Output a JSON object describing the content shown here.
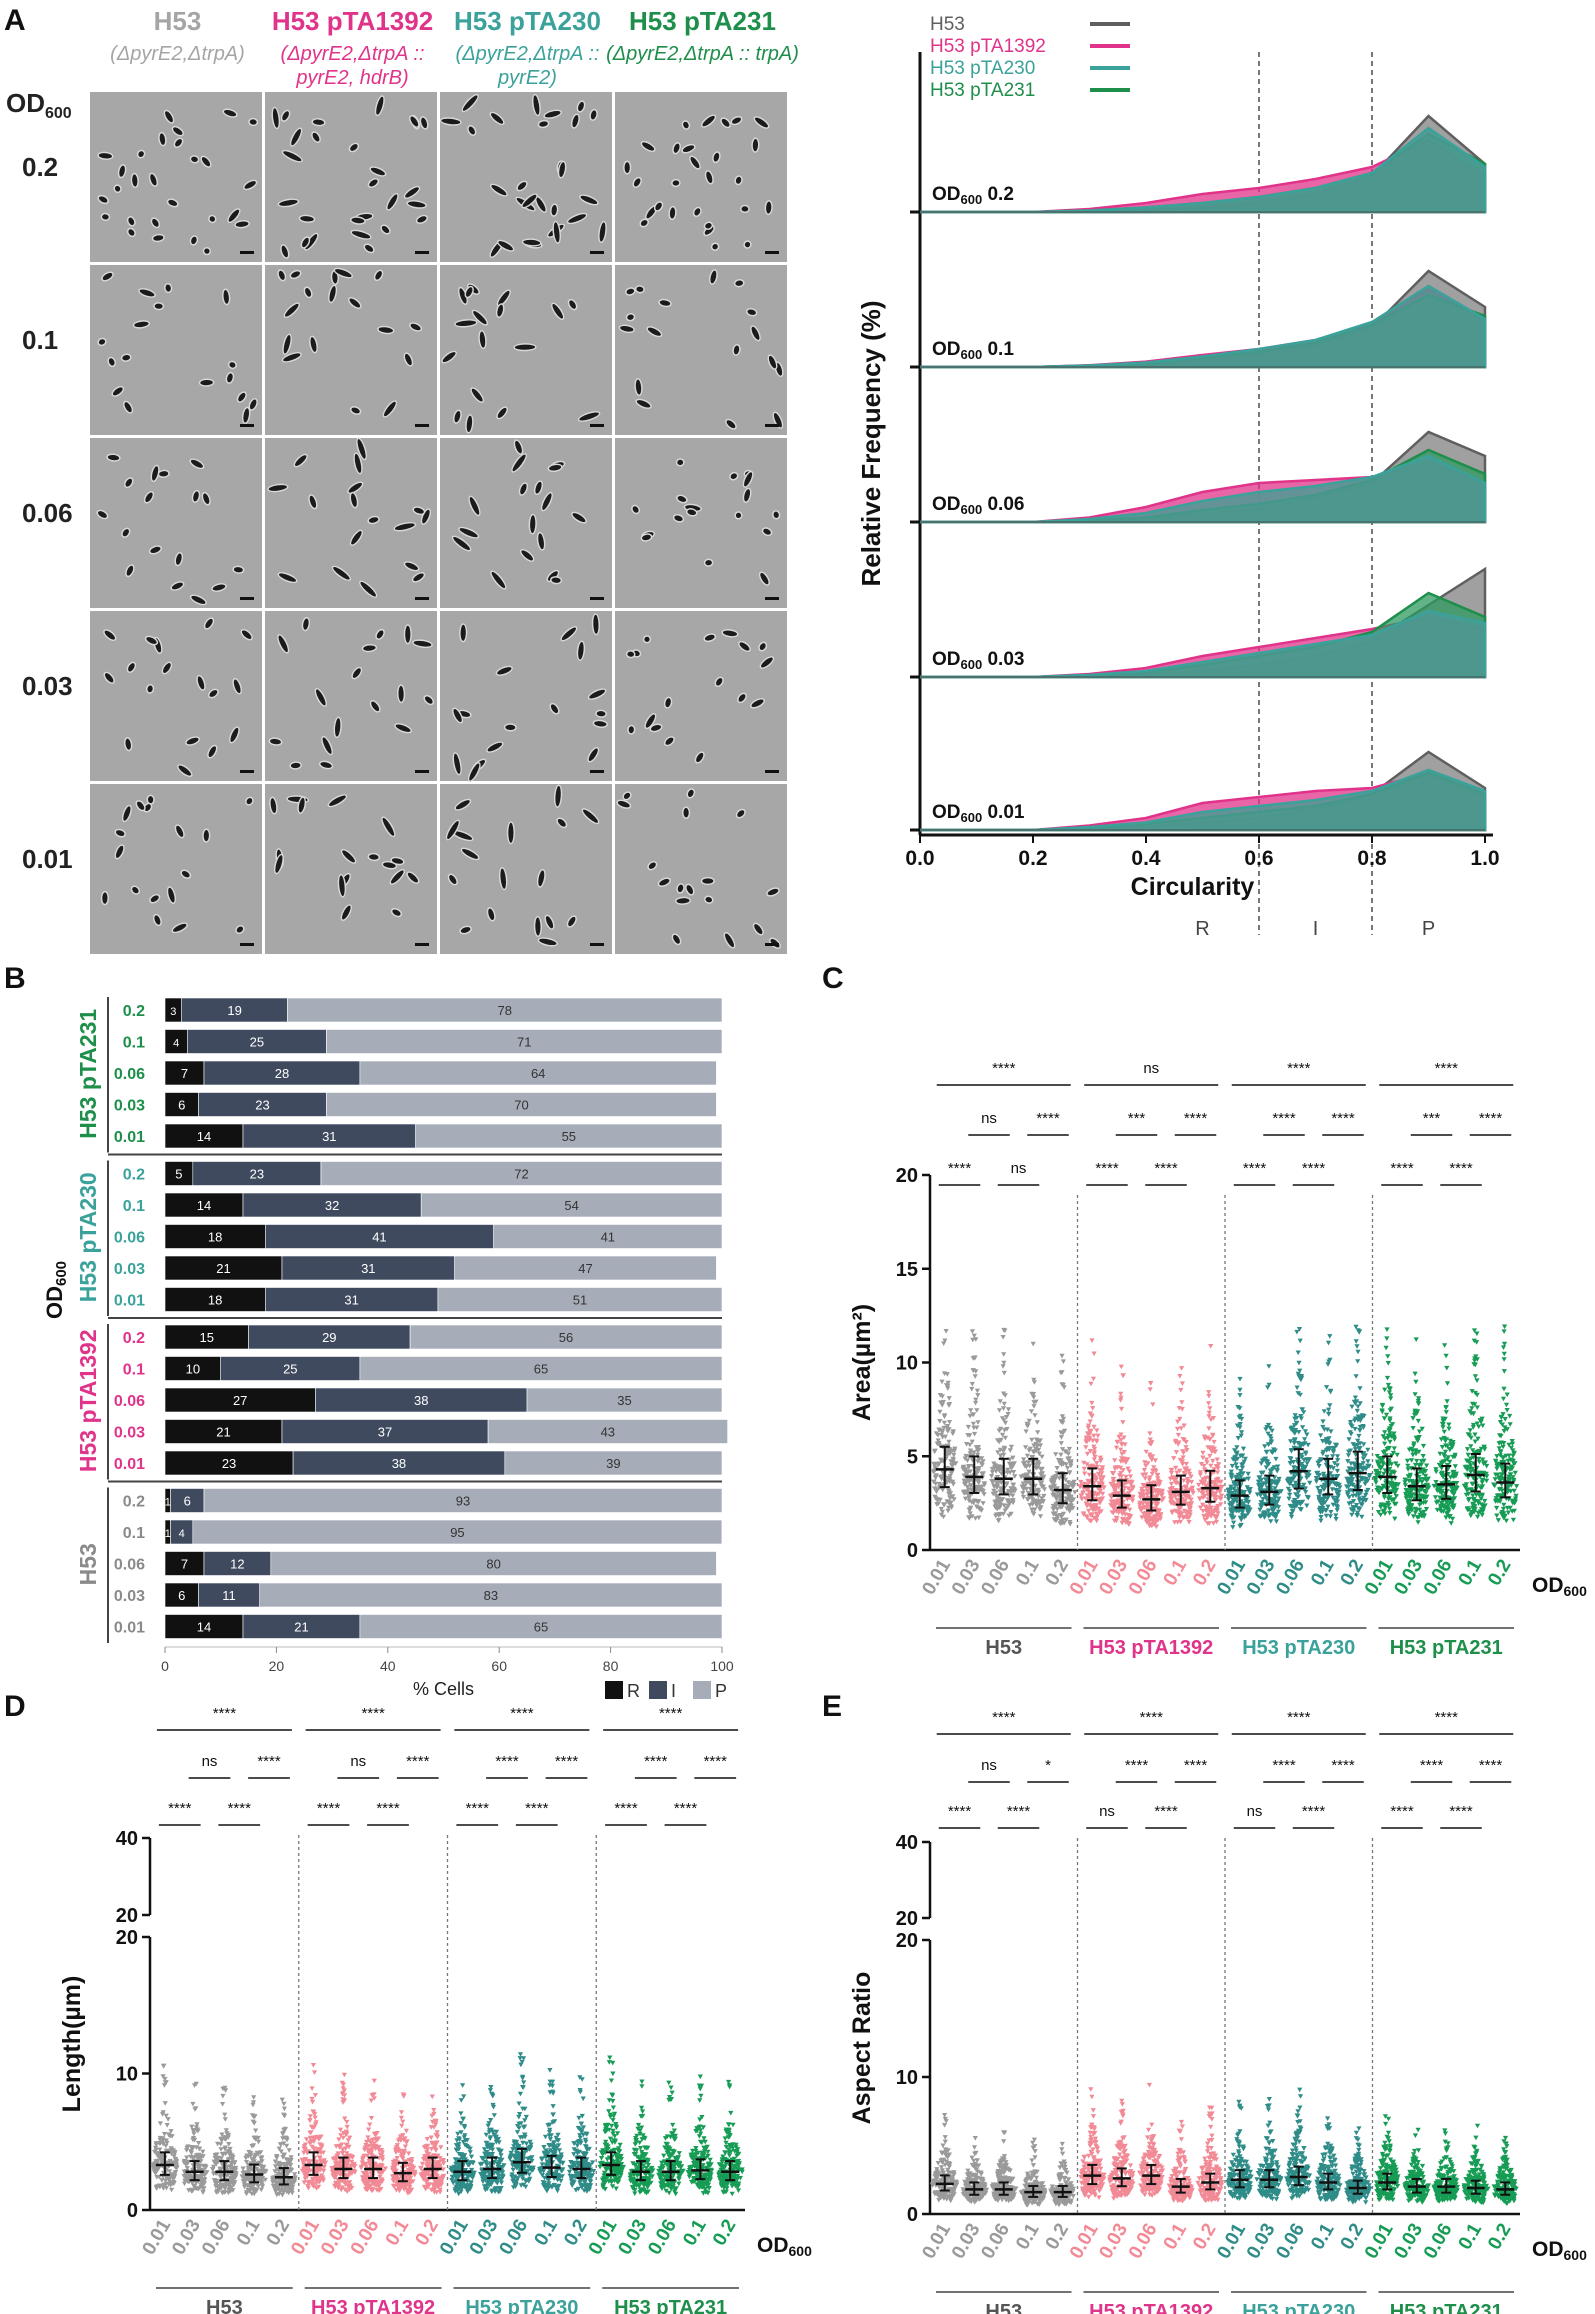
{
  "panels": {
    "a": "A",
    "b": "B",
    "c": "C",
    "d": "D",
    "e": "E"
  },
  "micrographs": {
    "od_header": "OD",
    "od_sub": "600",
    "columns": [
      {
        "title": "H53",
        "subtitle": "(ΔpyrE2,ΔtrpA)",
        "color": "#a5a5a5"
      },
      {
        "title": "H53 pTA1392",
        "subtitle": "(ΔpyrE2,ΔtrpA :: pyrE2, hdrB)",
        "color": "#e0338a"
      },
      {
        "title": "H53 pTA230",
        "subtitle": "(ΔpyrE2,ΔtrpA :: pyrE2)",
        "color": "#3aa29a"
      },
      {
        "title": "H53 pTA231",
        "subtitle": "(ΔpyrE2,ΔtrpA :: trpA)",
        "color": "#1d8f4a"
      }
    ],
    "rows": [
      "0.2",
      "0.1",
      "0.06",
      "0.03",
      "0.01"
    ]
  },
  "chart_data": [
    {
      "id": "A-right",
      "type": "area",
      "xlabel": "Circularity",
      "ylabel": "Relative Frequency (%)",
      "xlim": [
        0,
        1.0
      ],
      "xticks": [
        "0.0",
        "0.2",
        "0.4",
        "0.6",
        "0.8",
        "1.0"
      ],
      "x": [
        0,
        0.1,
        0.2,
        0.3,
        0.4,
        0.5,
        0.6,
        0.7,
        0.8,
        0.9,
        1.0
      ],
      "dividers": [
        0.6,
        0.8
      ],
      "zone_labels": [
        "R",
        "I",
        "P"
      ],
      "legend": [
        {
          "name": "H53",
          "color": "#5f5f5f"
        },
        {
          "name": "H53 pTA1392",
          "color": "#e0338a"
        },
        {
          "name": "H53 pTA230",
          "color": "#3aa29a"
        },
        {
          "name": "H53 pTA231",
          "color": "#1d8f4a"
        }
      ],
      "panels": [
        {
          "label": "OD",
          "sub": "600",
          "od": "0.2",
          "series": [
            {
              "name": "H53",
              "values": [
                0,
                0,
                0,
                0.3,
                0.6,
                1.5,
                3,
                6,
                12,
                32,
                16
              ]
            },
            {
              "name": "H53 pTA1392",
              "values": [
                0,
                0,
                0,
                1,
                3,
                6,
                8,
                11,
                15,
                24,
                12
              ]
            },
            {
              "name": "H53 pTA230",
              "values": [
                0,
                0,
                0,
                0.5,
                1.5,
                3,
                5,
                8,
                13,
                28,
                15
              ]
            },
            {
              "name": "H53 pTA231",
              "values": [
                0,
                0,
                0,
                0.5,
                1.5,
                3,
                5,
                8,
                13,
                26,
                16
              ]
            }
          ]
        },
        {
          "label": "OD",
          "sub": "600",
          "od": "0.1",
          "series": [
            {
              "name": "H53",
              "values": [
                0,
                0,
                0,
                0.3,
                0.8,
                2,
                4,
                7,
                13,
                32,
                20
              ]
            },
            {
              "name": "H53 pTA1392",
              "values": [
                0,
                0,
                0,
                0.6,
                1.8,
                4,
                6,
                9,
                14,
                26,
                15
              ]
            },
            {
              "name": "H53 pTA230",
              "values": [
                0,
                0,
                0,
                0.5,
                1.5,
                3.5,
                6,
                9,
                15,
                27,
                16
              ]
            },
            {
              "name": "H53 pTA231",
              "values": [
                0,
                0,
                0,
                0.5,
                1.2,
                3,
                5,
                8,
                14,
                24,
                17
              ]
            }
          ]
        },
        {
          "label": "OD",
          "sub": "600",
          "od": "0.06",
          "series": [
            {
              "name": "H53",
              "values": [
                0,
                0,
                0,
                0.3,
                1,
                2.5,
                4.5,
                8,
                13,
                30,
                22
              ]
            },
            {
              "name": "H53 pTA1392",
              "values": [
                0,
                0,
                0,
                1.5,
                5,
                10,
                13,
                14,
                15,
                20,
                13
              ]
            },
            {
              "name": "H53 pTA230",
              "values": [
                0,
                0,
                0,
                1,
                3,
                7,
                10,
                12,
                15,
                22,
                13
              ]
            },
            {
              "name": "H53 pTA231",
              "values": [
                0,
                0,
                0,
                0.5,
                1.5,
                4,
                6,
                9,
                14,
                24,
                16
              ]
            }
          ]
        },
        {
          "label": "OD",
          "sub": "600",
          "od": "0.03",
          "series": [
            {
              "name": "H53",
              "values": [
                0,
                0,
                0,
                0.3,
                0.8,
                2,
                4,
                7,
                12,
                24,
                36
              ]
            },
            {
              "name": "H53 pTA1392",
              "values": [
                0,
                0,
                0,
                1,
                3,
                7,
                10,
                13,
                16,
                20,
                16
              ]
            },
            {
              "name": "H53 pTA230",
              "values": [
                0,
                0,
                0,
                0.7,
                2,
                5,
                8,
                11,
                14,
                22,
                18
              ]
            },
            {
              "name": "H53 pTA231",
              "values": [
                0,
                0,
                0,
                0.6,
                1.5,
                4,
                7,
                10,
                15,
                28,
                20
              ]
            }
          ]
        },
        {
          "label": "OD",
          "sub": "600",
          "od": "0.01",
          "series": [
            {
              "name": "H53",
              "values": [
                0,
                0,
                0,
                0.4,
                1,
                2.5,
                4,
                7,
                12,
                26,
                14
              ]
            },
            {
              "name": "H53 pTA1392",
              "values": [
                0,
                0,
                0,
                1.5,
                4,
                9,
                11,
                13,
                14,
                19,
                11
              ]
            },
            {
              "name": "H53 pTA230",
              "values": [
                0,
                0,
                0,
                1,
                2.5,
                6,
                8,
                10,
                13,
                20,
                13
              ]
            },
            {
              "name": "H53 pTA231",
              "values": [
                0,
                0,
                0,
                0.7,
                2,
                4,
                6,
                8,
                12,
                19,
                12
              ]
            }
          ]
        }
      ]
    },
    {
      "id": "B",
      "type": "bar",
      "stacked": true,
      "orientation": "horizontal",
      "xlabel": "% Cells",
      "ylabel": "OD",
      "ylabel_sub": "600",
      "xlim": [
        0,
        100
      ],
      "xticks": [
        "0",
        "20",
        "40",
        "60",
        "80",
        "100"
      ],
      "legend": [
        "R",
        "I",
        "P"
      ],
      "segment_colors": [
        "#111111",
        "#3f4a5f",
        "#a7adb8"
      ],
      "groups": [
        {
          "name": "H53 pTA231",
          "color": "#1d8f4a",
          "rows": [
            {
              "od": "0.2",
              "values": [
                3,
                19,
                78
              ]
            },
            {
              "od": "0.1",
              "values": [
                4,
                25,
                71
              ]
            },
            {
              "od": "0.06",
              "values": [
                7,
                28,
                64
              ]
            },
            {
              "od": "0.03",
              "values": [
                6,
                23,
                70
              ]
            },
            {
              "od": "0.01",
              "values": [
                14,
                31,
                55
              ]
            }
          ]
        },
        {
          "name": "H53 pTA230",
          "color": "#3aa29a",
          "rows": [
            {
              "od": "0.2",
              "values": [
                5,
                23,
                72
              ]
            },
            {
              "od": "0.1",
              "values": [
                14,
                32,
                54
              ]
            },
            {
              "od": "0.06",
              "values": [
                18,
                41,
                41
              ]
            },
            {
              "od": "0.03",
              "values": [
                21,
                31,
                47
              ]
            },
            {
              "od": "0.01",
              "values": [
                18,
                31,
                51
              ]
            }
          ]
        },
        {
          "name": "H53 pTA1392",
          "color": "#e0338a",
          "rows": [
            {
              "od": "0.2",
              "values": [
                15,
                29,
                56
              ]
            },
            {
              "od": "0.1",
              "values": [
                10,
                25,
                65
              ]
            },
            {
              "od": "0.06",
              "values": [
                27,
                38,
                35
              ]
            },
            {
              "od": "0.03",
              "values": [
                21,
                37,
                43
              ]
            },
            {
              "od": "0.01",
              "values": [
                23,
                38,
                39
              ]
            }
          ]
        },
        {
          "name": "H53",
          "color": "#8a8a8a",
          "rows": [
            {
              "od": "0.2",
              "values": [
                1,
                6,
                93
              ]
            },
            {
              "od": "0.1",
              "values": [
                1,
                4,
                95
              ]
            },
            {
              "od": "0.06",
              "values": [
                7,
                12,
                80
              ]
            },
            {
              "od": "0.03",
              "values": [
                6,
                11,
                83
              ]
            },
            {
              "od": "0.01",
              "values": [
                14,
                21,
                65
              ]
            }
          ]
        }
      ]
    },
    {
      "id": "C",
      "type": "scatter",
      "ylabel": "Area(µm²)",
      "ylim": [
        0,
        20
      ],
      "yticks": [
        "0",
        "5",
        "10",
        "15",
        "20"
      ],
      "x_suffix": "OD",
      "x_suffix_sub": "600",
      "categories": [
        "0.01",
        "0.03",
        "0.06",
        "0.1",
        "0.2"
      ],
      "groups": [
        {
          "name": "H53",
          "point_color": "#9a9a9a",
          "label_color": "#555555",
          "medians": [
            4.3,
            3.9,
            3.8,
            3.8,
            3.2
          ]
        },
        {
          "name": "H53 pTA1392",
          "point_color": "#f28a96",
          "label_color": "#e0338a",
          "medians": [
            3.4,
            2.9,
            2.7,
            3.1,
            3.3
          ]
        },
        {
          "name": "H53 pTA230",
          "point_color": "#2f8c88",
          "label_color": "#3aa29a",
          "medians": [
            2.9,
            3.1,
            4.2,
            3.8,
            4.1
          ]
        },
        {
          "name": "H53 pTA231",
          "point_color": "#169c55",
          "label_color": "#1d8f4a",
          "medians": [
            3.9,
            3.4,
            3.5,
            4.0,
            3.6
          ]
        }
      ],
      "sig": [
        {
          "top": "****",
          "mid": [
            "ns",
            "****"
          ],
          "low": [
            "****",
            "ns"
          ]
        },
        {
          "top": "ns",
          "mid": [
            "***",
            "****"
          ],
          "low": [
            "****",
            "****"
          ]
        },
        {
          "top": "****",
          "mid": [
            "****",
            "****"
          ],
          "low": [
            "****",
            "****"
          ]
        },
        {
          "top": "****",
          "mid": [
            "***",
            "****"
          ],
          "low": [
            "****",
            "****"
          ]
        }
      ]
    },
    {
      "id": "D",
      "type": "scatter",
      "ylabel": "Length(µm)",
      "ylim": [
        0,
        40
      ],
      "yticks_lower": [
        "0",
        "10",
        "20"
      ],
      "yticks_upper": [
        "20",
        "40"
      ],
      "x_suffix": "OD",
      "x_suffix_sub": "600",
      "categories": [
        "0.01",
        "0.03",
        "0.06",
        "0.1",
        "0.2"
      ],
      "groups": [
        {
          "name": "H53",
          "point_color": "#9a9a9a",
          "label_color": "#555555",
          "medians": [
            3.3,
            2.8,
            2.8,
            2.6,
            2.4
          ]
        },
        {
          "name": "H53 pTA1392",
          "point_color": "#f28a96",
          "label_color": "#e0338a",
          "medians": [
            3.3,
            3.0,
            3.0,
            2.7,
            3.0
          ]
        },
        {
          "name": "H53 pTA230",
          "point_color": "#2f8c88",
          "label_color": "#3aa29a",
          "medians": [
            2.8,
            3.0,
            3.5,
            3.1,
            3.0
          ]
        },
        {
          "name": "H53 pTA231",
          "point_color": "#169c55",
          "label_color": "#1d8f4a",
          "medians": [
            3.3,
            2.8,
            2.8,
            2.9,
            2.8
          ]
        }
      ],
      "sig": [
        {
          "top": "****",
          "mid": [
            "ns",
            "****"
          ],
          "low": [
            "****",
            "****"
          ]
        },
        {
          "top": "****",
          "mid": [
            "ns",
            "****"
          ],
          "low": [
            "****",
            "****"
          ]
        },
        {
          "top": "****",
          "mid": [
            "****",
            "****"
          ],
          "low": [
            "****",
            "****"
          ]
        },
        {
          "top": "****",
          "mid": [
            "****",
            "****"
          ],
          "low": [
            "****",
            "****"
          ]
        }
      ]
    },
    {
      "id": "E",
      "type": "scatter",
      "ylabel": "Aspect Ratio",
      "ylim": [
        0,
        40
      ],
      "yticks_lower": [
        "0",
        "10",
        "20"
      ],
      "yticks_upper": [
        "20",
        "40"
      ],
      "x_suffix": "OD",
      "x_suffix_sub": "600",
      "categories": [
        "0.01",
        "0.03",
        "0.06",
        "0.1",
        "0.2"
      ],
      "groups": [
        {
          "name": "H53",
          "point_color": "#9a9a9a",
          "label_color": "#555555",
          "medians": [
            2.2,
            1.8,
            1.8,
            1.6,
            1.6
          ]
        },
        {
          "name": "H53 pTA1392",
          "point_color": "#f28a96",
          "label_color": "#e0338a",
          "medians": [
            2.8,
            2.6,
            2.8,
            2.0,
            2.3
          ]
        },
        {
          "name": "H53 pTA230",
          "point_color": "#2f8c88",
          "label_color": "#3aa29a",
          "medians": [
            2.5,
            2.5,
            2.7,
            2.3,
            1.9
          ]
        },
        {
          "name": "H53 pTA231",
          "point_color": "#169c55",
          "label_color": "#1d8f4a",
          "medians": [
            2.3,
            2.0,
            2.0,
            1.9,
            1.8
          ]
        }
      ],
      "sig": [
        {
          "top": "****",
          "mid": [
            "ns",
            "*"
          ],
          "low": [
            "****",
            "****"
          ]
        },
        {
          "top": "****",
          "mid": [
            "****",
            "****"
          ],
          "low": [
            "ns",
            "****"
          ]
        },
        {
          "top": "****",
          "mid": [
            "****",
            "****"
          ],
          "low": [
            "ns",
            "****"
          ]
        },
        {
          "top": "****",
          "mid": [
            "****",
            "****"
          ],
          "low": [
            "****",
            "****"
          ]
        }
      ]
    }
  ]
}
